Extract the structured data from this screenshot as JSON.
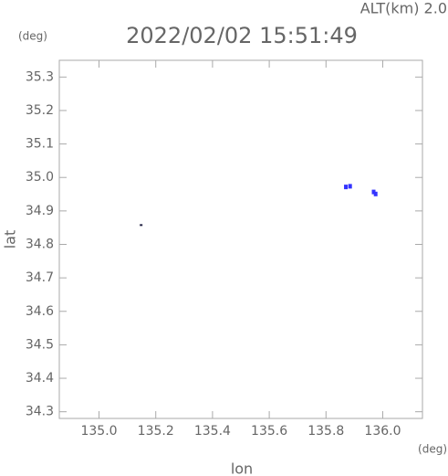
{
  "chart_data": {
    "type": "scatter",
    "title": "2022/02/02 15:51:49",
    "subtitle": "ALT(km) 2.0",
    "x_label": "lon",
    "y_label": "lat",
    "x_unit": "(deg)",
    "y_unit": "(deg)",
    "xlim": [
      134.86,
      136.14
    ],
    "ylim": [
      34.28,
      35.35
    ],
    "xticks": [
      {
        "value": 135.0,
        "label": "135.0"
      },
      135.2,
      135.4,
      135.6,
      135.8,
      {
        "value": 136.0,
        "label": "136.0"
      }
    ],
    "yticks": [
      34.3,
      34.4,
      34.5,
      34.6,
      34.7,
      34.8,
      34.9,
      {
        "value": 35.0,
        "label": "35.0"
      },
      35.1,
      35.2,
      35.3
    ],
    "series": [
      {
        "color": "#222244",
        "x": [
          135.15
        ],
        "y": [
          34.855
        ]
      },
      {
        "color": "#3333ff",
        "x": [
          135.87,
          135.885,
          135.968,
          135.975
        ],
        "y": [
          34.973,
          34.975,
          34.958,
          34.952
        ]
      }
    ]
  }
}
